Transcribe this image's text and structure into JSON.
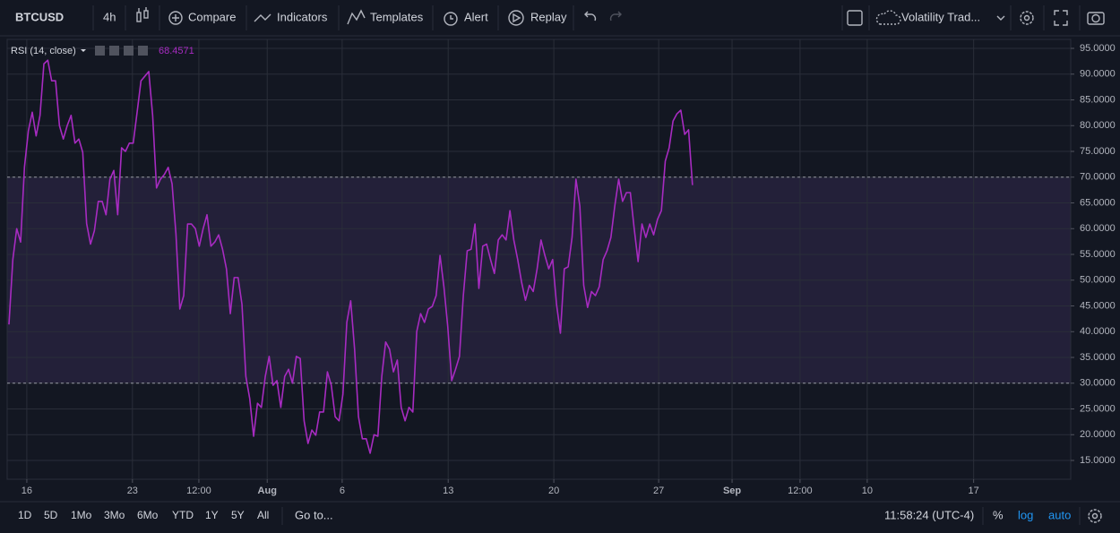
{
  "toolbar": {
    "symbol": "BTCUSD",
    "interval": "4h",
    "compare": "Compare",
    "indicators": "Indicators",
    "templates": "Templates",
    "alert": "Alert",
    "replay": "Replay",
    "layout": "Volatility Trad..."
  },
  "bottom_bar": {
    "ranges": [
      "1D",
      "5D",
      "1Mo",
      "3Mo",
      "6Mo",
      "YTD",
      "1Y",
      "5Y",
      "All"
    ],
    "goto": "Go to...",
    "clock": "11:58:24 (UTC-4)",
    "percent": "%",
    "log": "log",
    "auto": "auto"
  },
  "chart_data": {
    "type": "line",
    "series": [
      {
        "name": "RSI (14, close)",
        "color": "#a72bc1",
        "values": [
          41.4,
          54,
          60,
          57.4,
          72,
          79,
          82.6,
          78,
          82,
          92,
          92.7,
          88.7,
          88.7,
          80,
          77.4,
          80,
          82,
          76.6,
          77.4,
          74.8,
          61,
          57,
          59.6,
          65.3,
          65.3,
          62.7,
          69.6,
          71.3,
          62.7,
          75.7,
          75,
          76.6,
          76.6,
          82.6,
          88.7,
          89.6,
          90.5,
          82,
          67.9,
          69.6,
          70.5,
          71.9,
          68.7,
          59,
          44.4,
          47,
          60.9,
          60.9,
          60,
          56.6,
          60,
          62.7,
          56.6,
          57.4,
          58.8,
          56,
          52.2,
          43.5,
          50.5,
          50.5,
          45.3,
          31.3,
          27,
          19.7,
          26.1,
          25.3,
          31.3,
          35.2,
          29.6,
          30.5,
          25.3,
          31.3,
          32.7,
          30,
          35.2,
          34.8,
          22.7,
          18.3,
          20.9,
          19.9,
          24.4,
          24.4,
          32.2,
          29.6,
          23.5,
          22.7,
          27.9,
          41.8,
          46,
          36.6,
          23.5,
          19.2,
          19.2,
          16.4,
          20,
          19.7,
          31.3,
          38,
          36.6,
          32.2,
          34.5,
          25.3,
          22.7,
          25.3,
          24.4,
          40,
          43.5,
          41.8,
          44.4,
          44.9,
          47,
          54.8,
          48.7,
          40.9,
          30.5,
          32.7,
          35.2,
          47,
          55.7,
          56,
          60.9,
          48.4,
          56.6,
          57,
          54,
          51.3,
          57.8,
          58.8,
          57.8,
          63.5,
          57.8,
          54,
          49.6,
          46.1,
          49,
          47.8,
          52.2,
          57.8,
          54.8,
          52.2,
          54,
          45.3,
          39.7,
          52.2,
          52.6,
          58.3,
          69.6,
          64.4,
          49,
          44.7,
          47.8,
          47,
          48.7,
          54,
          55.7,
          58.3,
          64.4,
          69.6,
          65.3,
          67,
          67,
          60,
          53.6,
          60.9,
          58.3,
          60.9,
          58.8,
          61.8,
          63.5,
          73.1,
          75.7,
          80.9,
          82.3,
          83,
          78.3,
          79.2,
          68.4571
        ]
      }
    ],
    "band": [
      30,
      70
    ],
    "band_color": "#7e57c2",
    "xlim": [
      -0.46,
      273.4
    ],
    "xticks": [
      {
        "value": 4.6,
        "label": "16"
      },
      {
        "value": 31.8,
        "label": "23"
      },
      {
        "value": 48.9,
        "label": "12:00"
      },
      {
        "value": 66.5,
        "label": "Aug"
      },
      {
        "value": 85.8,
        "label": "6"
      },
      {
        "value": 113.1,
        "label": "13"
      },
      {
        "value": 140.3,
        "label": "20"
      },
      {
        "value": 167.3,
        "label": "27"
      },
      {
        "value": 186.2,
        "label": "Sep"
      },
      {
        "value": 203.7,
        "label": "12:00"
      },
      {
        "value": 221,
        "label": "10"
      },
      {
        "value": 248.4,
        "label": "17"
      }
    ],
    "ylim": [
      11.35,
      96.74
    ],
    "yticks": [
      {
        "value": 15,
        "label": "15.0000"
      },
      {
        "value": 20,
        "label": "20.0000"
      },
      {
        "value": 25,
        "label": "25.0000"
      },
      {
        "value": 30,
        "label": "30.0000"
      },
      {
        "value": 35,
        "label": "35.0000"
      },
      {
        "value": 40,
        "label": "40.0000"
      },
      {
        "value": 45,
        "label": "45.0000"
      },
      {
        "value": 50,
        "label": "50.0000"
      },
      {
        "value": 55,
        "label": "55.0000"
      },
      {
        "value": 60,
        "label": "60.0000"
      },
      {
        "value": 65,
        "label": "65.0000"
      },
      {
        "value": 70,
        "label": "70.0000"
      },
      {
        "value": 75,
        "label": "75.0000"
      },
      {
        "value": 80,
        "label": "80.0000"
      },
      {
        "value": 85,
        "label": "85.0000"
      },
      {
        "value": 90,
        "label": "90.0000"
      },
      {
        "value": 95,
        "label": "95.0000"
      }
    ],
    "grid": true
  }
}
